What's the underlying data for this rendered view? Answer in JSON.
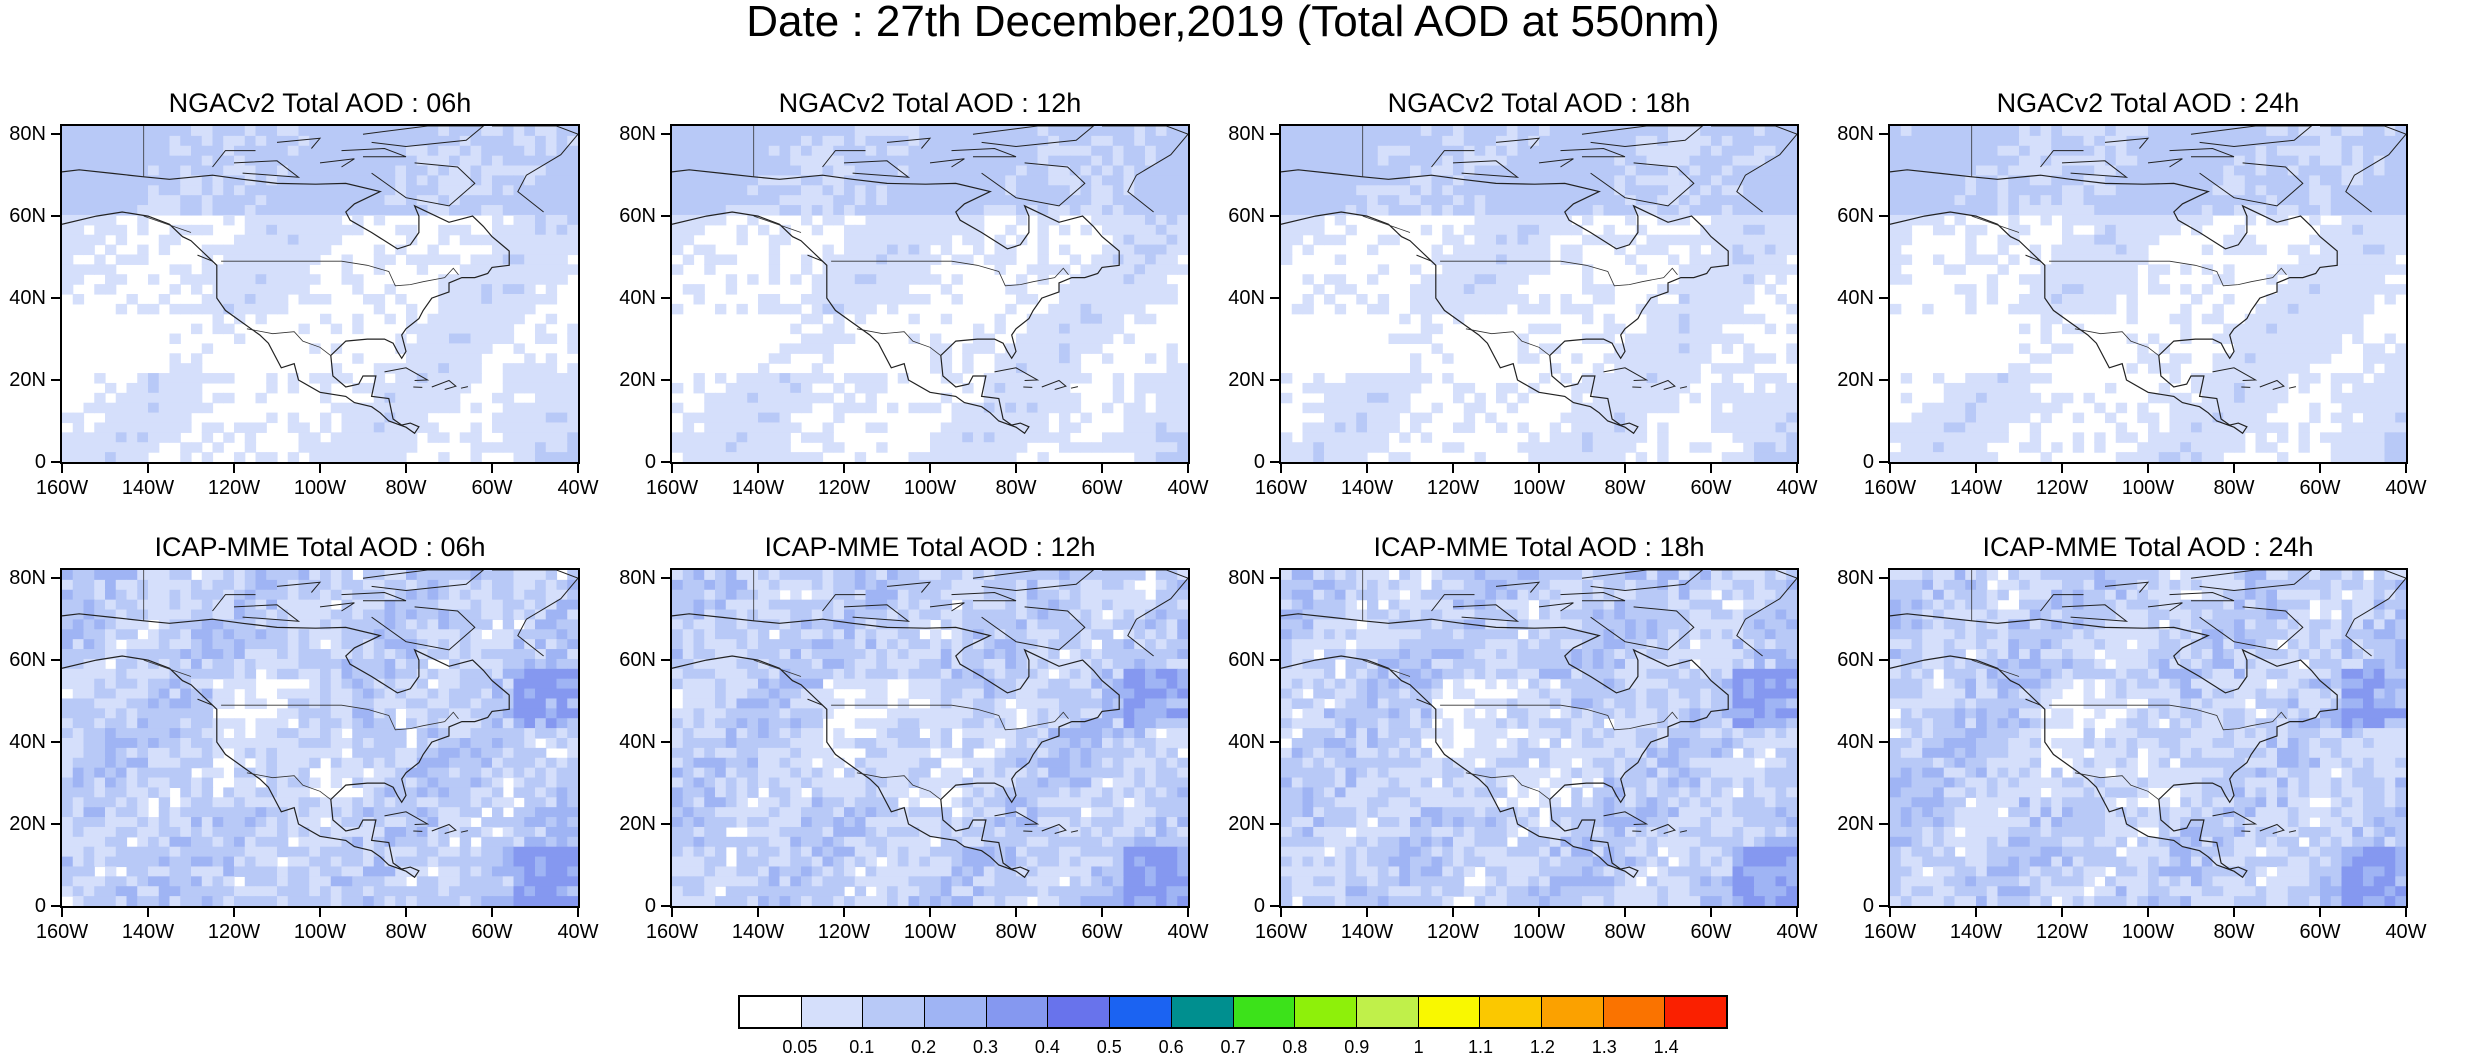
{
  "title": "Date : 27th December,2019 (Total AOD at 550nm)",
  "panels": [
    {
      "title": "NGACv2 Total AOD : 06h",
      "model": "ngac"
    },
    {
      "title": "NGACv2 Total AOD : 12h",
      "model": "ngac"
    },
    {
      "title": "NGACv2 Total AOD : 18h",
      "model": "ngac"
    },
    {
      "title": "NGACv2 Total AOD : 24h",
      "model": "ngac"
    },
    {
      "title": "ICAP-MME Total AOD : 06h",
      "model": "icap"
    },
    {
      "title": "ICAP-MME Total AOD : 12h",
      "model": "icap"
    },
    {
      "title": "ICAP-MME Total AOD : 18h",
      "model": "icap"
    },
    {
      "title": "ICAP-MME Total AOD : 24h",
      "model": "icap"
    }
  ],
  "lat_labels": [
    "80N",
    "60N",
    "40N",
    "20N",
    "0"
  ],
  "lon_labels": [
    "160W",
    "140W",
    "120W",
    "100W",
    "80W",
    "60W",
    "40W"
  ],
  "colorbar": {
    "colors": [
      "#ffffff",
      "#d5dffb",
      "#b8c9f7",
      "#9fb4f4",
      "#8598f0",
      "#6873ec",
      "#1b63f2",
      "#008f8f",
      "#3ce21a",
      "#8ef00a",
      "#c0f04a",
      "#f9f800",
      "#fbc800",
      "#fba100",
      "#fa7300",
      "#fa2000"
    ],
    "labels": [
      "0.05",
      "0.1",
      "0.2",
      "0.3",
      "0.4",
      "0.5",
      "0.6",
      "0.7",
      "0.8",
      "0.9",
      "1",
      "1.1",
      "1.2",
      "1.3",
      "1.4"
    ]
  }
}
